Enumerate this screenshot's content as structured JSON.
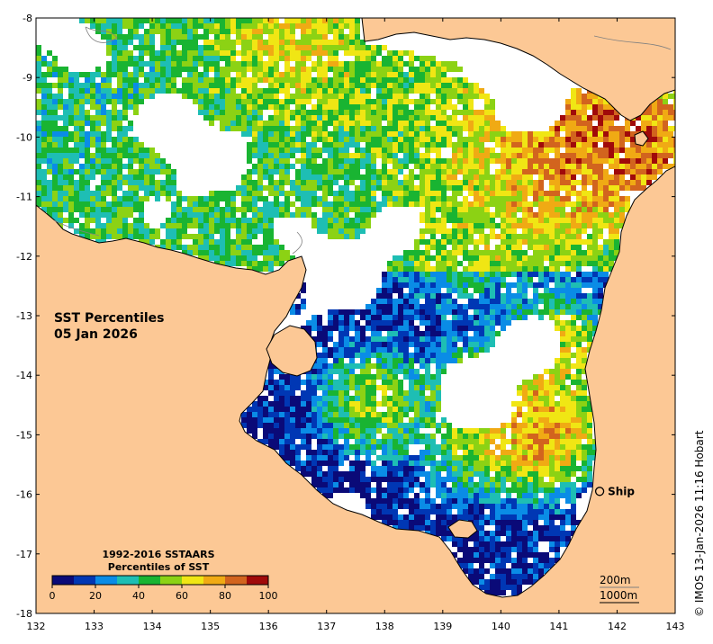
{
  "title": {
    "line1": "SST Percentiles",
    "line2": "05 Jan 2026"
  },
  "credit": "© IMOS 13-Jan-2026 11:16 Hobart",
  "axes": {
    "x_ticks": [
      "132",
      "133",
      "134",
      "135",
      "136",
      "137",
      "138",
      "139",
      "140",
      "141",
      "142",
      "143"
    ],
    "y_ticks": [
      "-8",
      "-9",
      "-10",
      "-11",
      "-12",
      "-13",
      "-14",
      "-15",
      "-16",
      "-17",
      "-18"
    ],
    "lon_range": [
      132,
      143
    ],
    "lat_range": [
      -18,
      -8
    ]
  },
  "colorbar": {
    "title_line1": "1992-2016 SSTAARS",
    "title_line2": "Percentiles of SST",
    "tick_labels": [
      "0",
      "20",
      "40",
      "60",
      "80",
      "100"
    ],
    "colors": [
      "#0a0a78",
      "#0037b4",
      "#0a8ce6",
      "#1ebeb4",
      "#19b432",
      "#8cd214",
      "#f0e614",
      "#f0aa14",
      "#d2641e",
      "#a00a0a"
    ]
  },
  "legend": {
    "contour_200": "200m",
    "contour_1000": "1000m"
  },
  "markers": [
    {
      "label": "Ship",
      "lon": 141.7,
      "lat": -15.95
    }
  ],
  "colors": {
    "land": "#fcc895",
    "no_data": "#ffffff"
  }
}
